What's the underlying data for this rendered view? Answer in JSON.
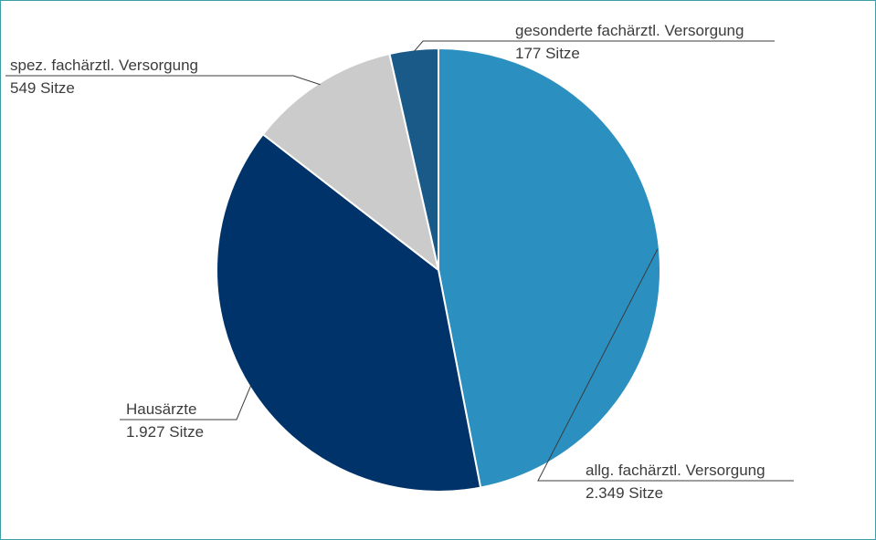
{
  "chart_data": {
    "type": "pie",
    "unit": "Sitze",
    "slices": [
      {
        "label": "allg. fachärztl. Versorgung",
        "value": 2349,
        "value_text": "2.349 Sitze",
        "color": "#2b8fc0"
      },
      {
        "label": "Hausärzte",
        "value": 1927,
        "value_text": "1.927 Sitze",
        "color": "#003369"
      },
      {
        "label": "spez. fachärztl. Versorgung",
        "value": 549,
        "value_text": "549 Sitze",
        "color": "#cbcbcb"
      },
      {
        "label": "gesonderte fachärztl. Versorgung",
        "value": 177,
        "value_text": "177 Sitze",
        "color": "#1a5a88"
      }
    ]
  }
}
